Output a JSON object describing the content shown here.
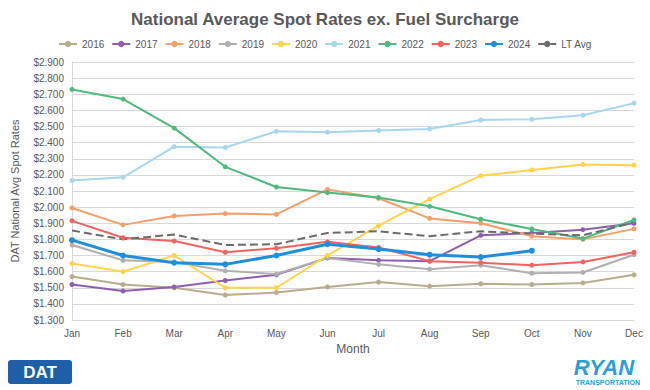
{
  "chart_data": {
    "type": "line",
    "title": "National Average Spot Rates ex. Fuel Surcharge",
    "x_label": "Month",
    "y_label": "DAT National Avg Spot Rates",
    "annotations": [
      "DAT",
      "RYAN",
      "TRANSPORTATION"
    ],
    "categories": [
      "Jan",
      "Feb",
      "Mar",
      "Apr",
      "May",
      "Jun",
      "Jul",
      "Aug",
      "Sep",
      "Oct",
      "Nov",
      "Dec"
    ],
    "series": [
      {
        "name": "2016",
        "color": "#b8ad8c",
        "marker": "circle",
        "line_style": "solid",
        "values": [
          1.57,
          1.52,
          1.5,
          1.455,
          1.47,
          1.505,
          1.535,
          1.51,
          1.525,
          1.52,
          1.53,
          1.58
        ]
      },
      {
        "name": "2017",
        "color": "#8e5fb0",
        "marker": "circle",
        "line_style": "solid",
        "values": [
          1.52,
          1.48,
          1.505,
          1.545,
          1.58,
          1.685,
          1.67,
          1.665,
          1.825,
          1.84,
          1.86,
          1.9
        ]
      },
      {
        "name": "2018",
        "color": "#f0a06a",
        "marker": "circle",
        "line_style": "solid",
        "values": [
          1.995,
          1.89,
          1.945,
          1.96,
          1.955,
          2.11,
          2.055,
          1.93,
          1.9,
          1.82,
          1.8,
          1.865
        ]
      },
      {
        "name": "2019",
        "color": "#b0b0b0",
        "marker": "circle",
        "line_style": "solid",
        "values": [
          1.765,
          1.67,
          1.66,
          1.605,
          1.585,
          1.685,
          1.645,
          1.615,
          1.64,
          1.59,
          1.595,
          1.705
        ]
      },
      {
        "name": "2020",
        "color": "#ffd34d",
        "marker": "circle",
        "line_style": "solid",
        "values": [
          1.65,
          1.6,
          1.7,
          1.5,
          1.5,
          1.7,
          1.885,
          2.05,
          2.195,
          2.23,
          2.265,
          2.26
        ]
      },
      {
        "name": "2021",
        "color": "#a9d8ec",
        "marker": "circle",
        "line_style": "solid",
        "values": [
          2.165,
          2.185,
          2.375,
          2.37,
          2.47,
          2.465,
          2.475,
          2.485,
          2.54,
          2.545,
          2.57,
          2.645
        ]
      },
      {
        "name": "2022",
        "color": "#4fb97f",
        "marker": "circle",
        "line_style": "solid",
        "values": [
          2.73,
          2.67,
          2.49,
          2.25,
          2.125,
          2.09,
          2.06,
          2.005,
          1.925,
          1.865,
          1.805,
          1.92
        ]
      },
      {
        "name": "2023",
        "color": "#f2625f",
        "marker": "circle",
        "line_style": "solid",
        "values": [
          1.915,
          1.81,
          1.79,
          1.72,
          1.745,
          1.785,
          1.75,
          1.665,
          1.655,
          1.64,
          1.66,
          1.72
        ]
      },
      {
        "name": "2024",
        "color": "#1f8fdc",
        "marker": "circle",
        "line_style": "solid",
        "values": [
          1.795,
          1.7,
          1.655,
          1.645,
          1.7,
          1.77,
          1.74,
          1.705,
          1.69,
          1.73,
          null,
          null
        ]
      },
      {
        "name": "LT Avg",
        "color": "#6b6b6b",
        "marker": "none",
        "line_style": "dashed",
        "values": [
          1.855,
          1.8,
          1.83,
          1.765,
          1.77,
          1.84,
          1.85,
          1.82,
          1.85,
          1.835,
          1.825,
          1.905
        ]
      }
    ],
    "ylim": [
      1.3,
      2.9
    ],
    "yticks": [
      {
        "value": 1.3,
        "label": "$1.300"
      },
      {
        "value": 1.4,
        "label": "$1.400"
      },
      {
        "value": 1.5,
        "label": "$1.500"
      },
      {
        "value": 1.6,
        "label": "$1.600"
      },
      {
        "value": 1.7,
        "label": "$1.700"
      },
      {
        "value": 1.8,
        "label": "$1.800"
      },
      {
        "value": 1.9,
        "label": "$1.900"
      },
      {
        "value": 2.0,
        "label": "$2.000"
      },
      {
        "value": 2.1,
        "label": "$2.100"
      },
      {
        "value": 2.2,
        "label": "$2.200"
      },
      {
        "value": 2.3,
        "label": "$2.300"
      },
      {
        "value": 2.4,
        "label": "$2.400"
      },
      {
        "value": 2.5,
        "label": "$2.500"
      },
      {
        "value": 2.6,
        "label": "$2.600"
      },
      {
        "value": 2.7,
        "label": "$2.700"
      },
      {
        "value": 2.8,
        "label": "$2.800"
      },
      {
        "value": 2.9,
        "label": "$2.900"
      }
    ],
    "grid": true,
    "legend": "top"
  }
}
